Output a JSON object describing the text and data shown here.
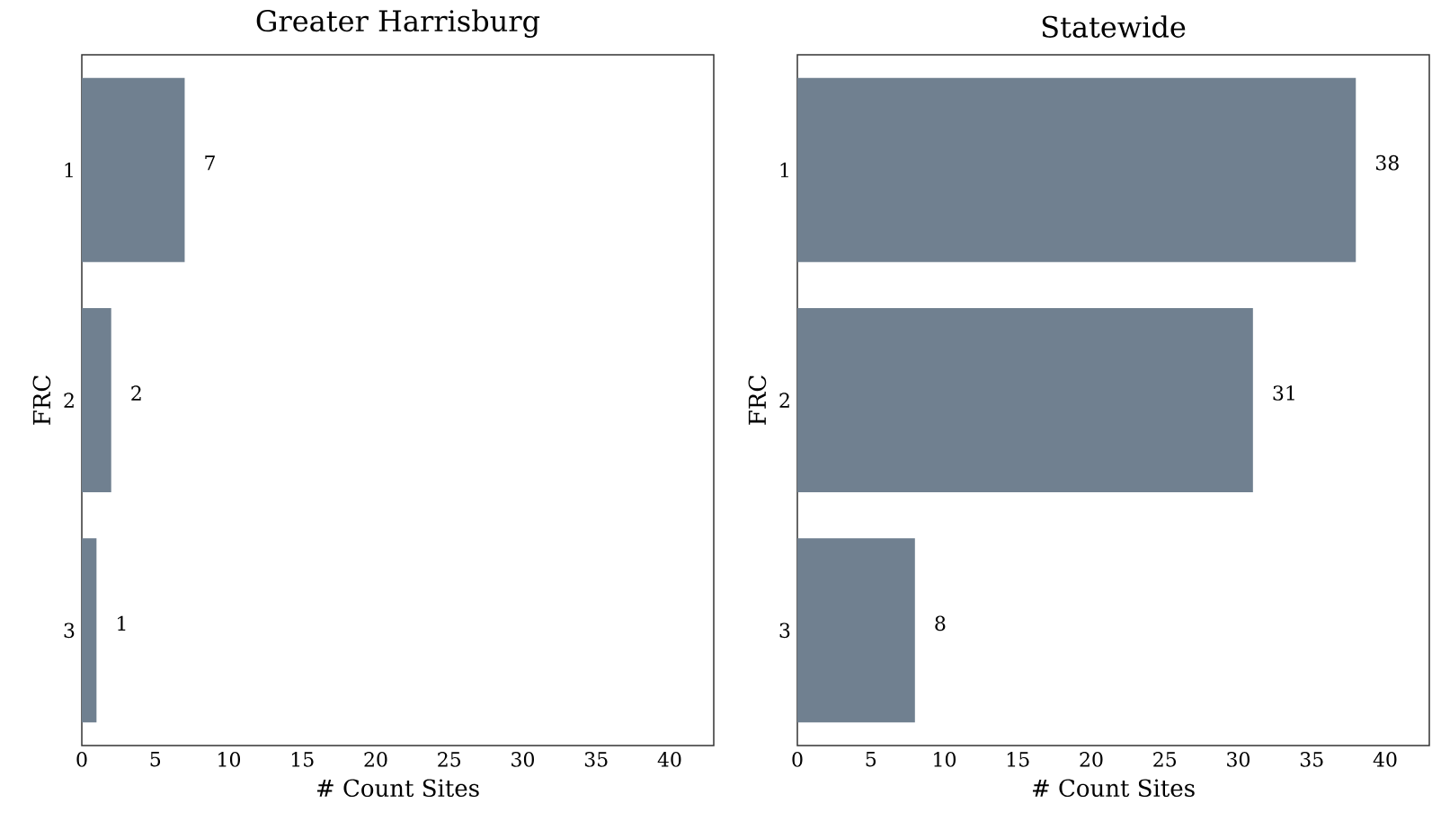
{
  "chart_data": [
    {
      "type": "bar",
      "orientation": "horizontal",
      "title": "Greater Harrisburg",
      "xlabel": "# Count Sites",
      "ylabel": "FRC",
      "categories": [
        "1",
        "2",
        "3"
      ],
      "values": [
        7,
        2,
        1
      ],
      "color": "#708090",
      "xlim": [
        0,
        43
      ],
      "xticks": [
        0,
        5,
        10,
        15,
        20,
        25,
        30,
        35,
        40
      ],
      "data_labels": true,
      "grid": false
    },
    {
      "type": "bar",
      "orientation": "horizontal",
      "title": "Statewide",
      "xlabel": "# Count Sites",
      "ylabel": "FRC",
      "categories": [
        "1",
        "2",
        "3"
      ],
      "values": [
        38,
        31,
        8
      ],
      "color": "#708090",
      "xlim": [
        0,
        43
      ],
      "xticks": [
        0,
        5,
        10,
        15,
        20,
        25,
        30,
        35,
        40
      ],
      "data_labels": true,
      "grid": false
    }
  ]
}
